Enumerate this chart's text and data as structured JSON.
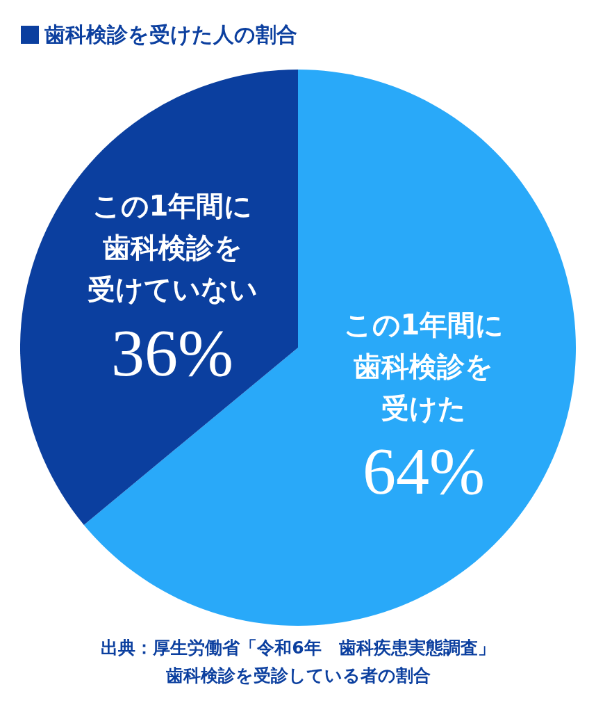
{
  "chart_data": {
    "type": "pie",
    "title": "歯科検診を受けた人の割合",
    "categories": [
      "この1年間に歯科検診を受けた",
      "この1年間に歯科検診を受けていない"
    ],
    "values": [
      64,
      36
    ],
    "colors": [
      "#29a9f9",
      "#0b3f9f"
    ],
    "value_labels": [
      "64%",
      "36%"
    ],
    "legend": false,
    "annotations": [
      "出典：厚生労働省「令和6年　歯科疾患実態調査」",
      "歯科検診を受診している者の割合"
    ]
  }
}
